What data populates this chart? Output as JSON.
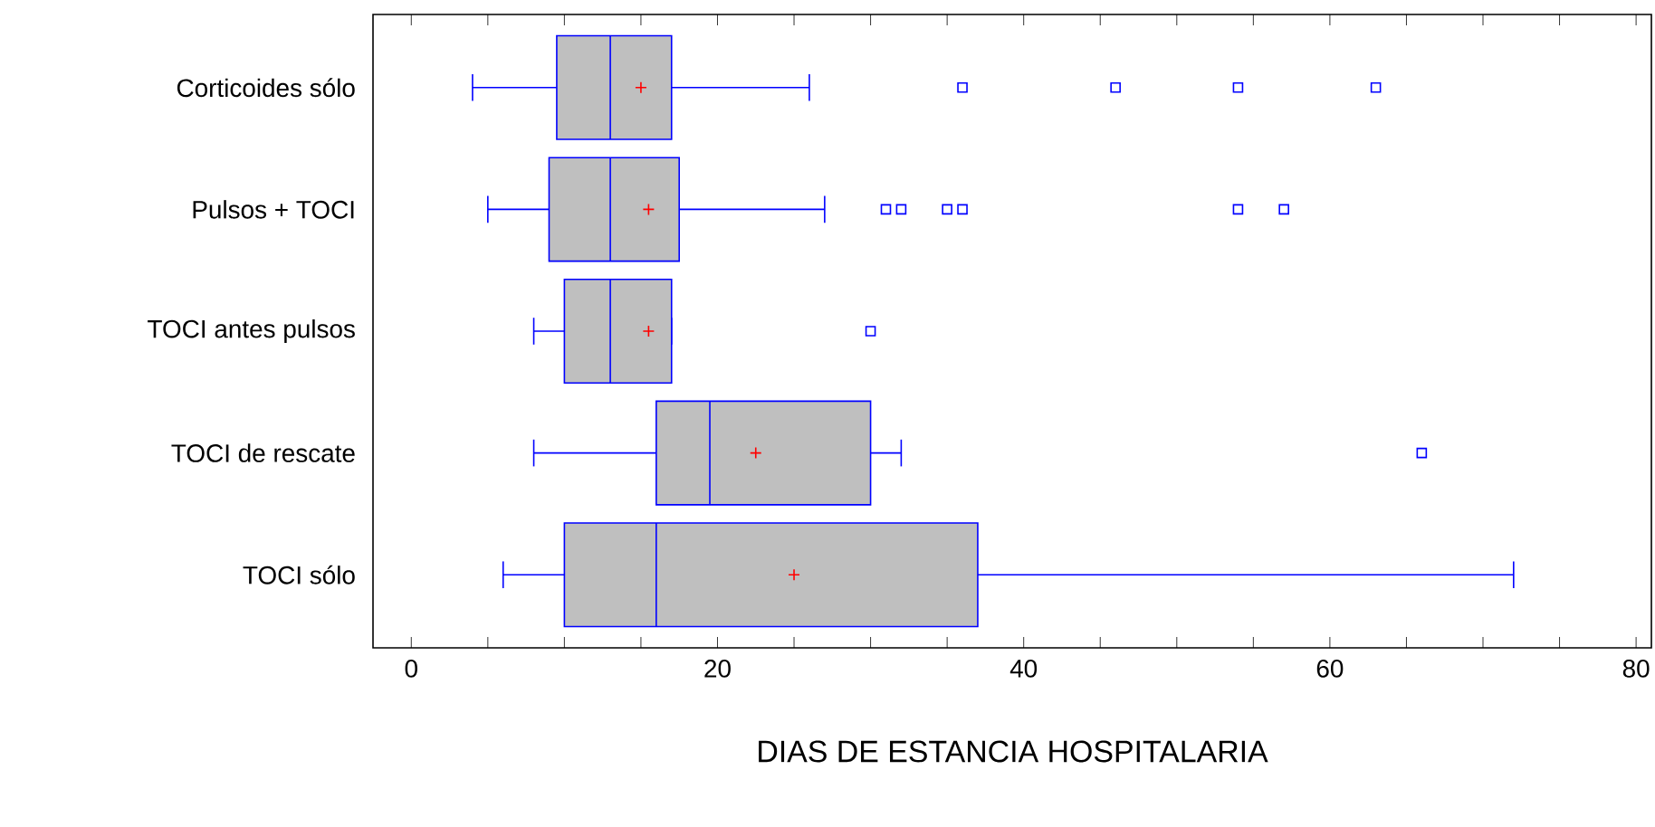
{
  "chart_data": {
    "type": "box",
    "orientation": "horizontal",
    "xlabel": "DIAS DE ESTANCIA HOSPITALARIA",
    "categories": [
      "Corticoides sólo",
      "Pulsos + TOCI",
      "TOCI antes pulsos",
      "TOCI de rescate",
      "TOCI sólo"
    ],
    "color": "#0000ff",
    "marker": "square",
    "boxes": [
      {
        "low": 4,
        "q1": 9.5,
        "median": 13,
        "q3": 17,
        "high": 26,
        "mean": 15,
        "outliers": [
          36,
          46,
          54,
          63
        ]
      },
      {
        "low": 5,
        "q1": 9,
        "median": 13,
        "q3": 17.5,
        "high": 27,
        "mean": 15.5,
        "outliers": [
          31,
          32,
          35,
          36,
          54,
          57
        ]
      },
      {
        "low": 8,
        "q1": 10,
        "median": 13,
        "q3": 17,
        "high": 17,
        "mean": 15.5,
        "outliers": [
          30
        ]
      },
      {
        "low": 8,
        "q1": 16,
        "median": 19.5,
        "q3": 30,
        "high": 32,
        "mean": 22.5,
        "outliers": [
          66
        ]
      },
      {
        "low": 6,
        "q1": 10,
        "median": 16,
        "q3": 37,
        "high": 72,
        "mean": 25
      }
    ],
    "xlim": [
      -2.5,
      81
    ],
    "xticks": [
      0,
      {
        "value": 5,
        "label": null
      },
      {
        "value": 10,
        "label": null
      },
      {
        "value": 15,
        "label": null
      },
      20,
      {
        "value": 25,
        "label": null
      },
      {
        "value": 30,
        "label": null
      },
      {
        "value": 35,
        "label": null
      },
      40,
      {
        "value": 45,
        "label": null
      },
      {
        "value": 50,
        "label": null
      },
      {
        "value": 55,
        "label": null
      },
      60,
      {
        "value": 65,
        "label": null
      },
      {
        "value": 70,
        "label": null
      },
      {
        "value": 75,
        "label": null
      },
      80
    ]
  }
}
